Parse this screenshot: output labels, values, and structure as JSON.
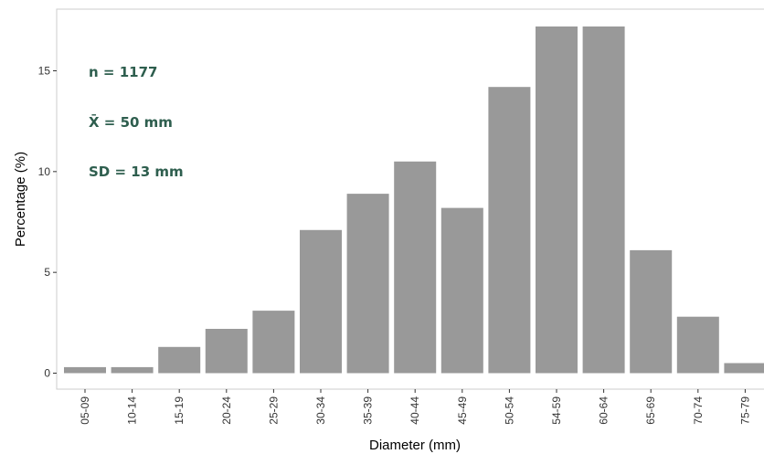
{
  "chart_data": {
    "type": "bar",
    "title": "",
    "xlabel": "Diameter (mm)",
    "ylabel": "Percentage (%)",
    "categories": [
      "05-09",
      "10-14",
      "15-19",
      "20-24",
      "25-29",
      "30-34",
      "35-39",
      "40-44",
      "45-49",
      "50-54",
      "54-59",
      "60-64",
      "65-69",
      "70-74",
      "75-79"
    ],
    "values": [
      0.3,
      0.3,
      1.3,
      2.2,
      3.1,
      7.1,
      8.9,
      10.5,
      8.2,
      14.2,
      17.2,
      17.2,
      6.1,
      2.8,
      0.5
    ],
    "ylim": [
      -0.7,
      18.0
    ],
    "yticks": [
      0,
      5,
      10,
      15
    ],
    "grid": false,
    "bar_color": "#999999",
    "annotations": [
      "n = 1177",
      "X̄ = 50 mm",
      "SD = 13 mm"
    ],
    "annotation_color": "#2e5e4e"
  }
}
